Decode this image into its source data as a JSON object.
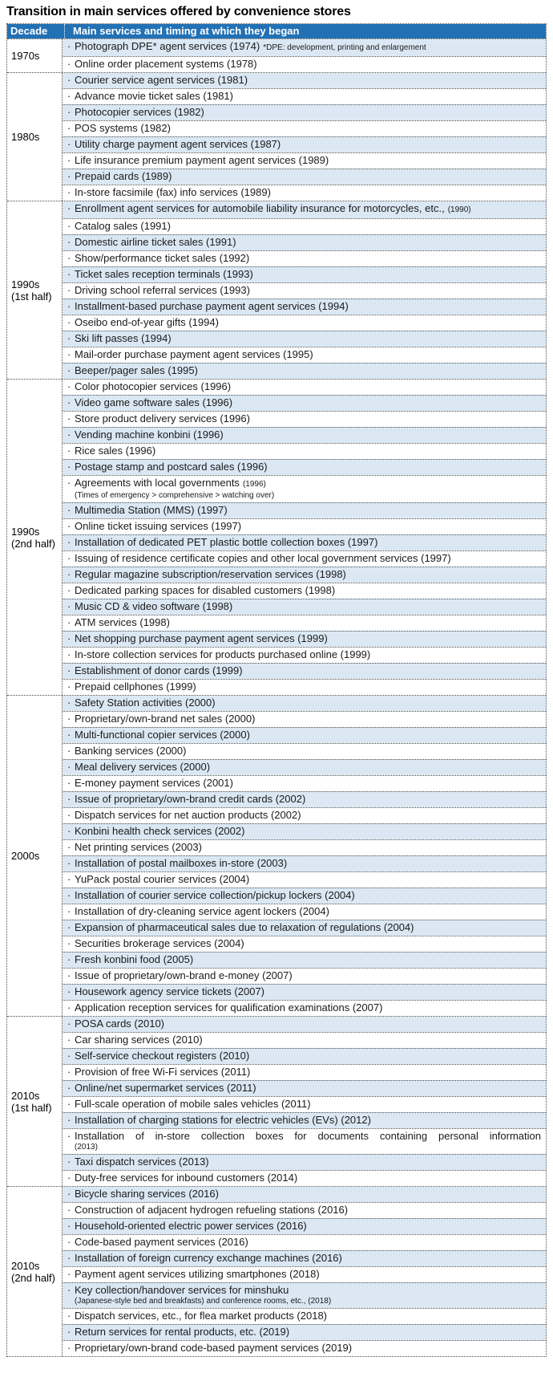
{
  "title": "Transition in main services offered by convenience stores",
  "bullet": "·",
  "colors": {
    "header_bg": "#2271B5",
    "header_text": "#FFFFFF",
    "row_alt_bg": "#DBE8F4",
    "row_bg": "#FFFFFF",
    "border": "#4D4D4D",
    "text": "#1A1A1A"
  },
  "header": {
    "decade": "Decade",
    "services": "Main services and timing at which they began"
  },
  "sections": [
    {
      "decade": [
        "1970s"
      ],
      "items": [
        {
          "text": "Photograph DPE* agent services (1974)",
          "note": "*DPE: development, printing and enlargement"
        },
        "Online order placement systems (1978)"
      ]
    },
    {
      "decade": [
        "1980s"
      ],
      "items": [
        "Courier service agent services (1981)",
        "Advance movie ticket sales (1981)",
        "Photocopier services (1982)",
        "POS systems (1982)",
        "Utility charge payment agent services (1987)",
        "Life insurance premium payment agent services (1989)",
        "Prepaid cards (1989)",
        "In-store facsimile (fax) info services (1989)"
      ]
    },
    {
      "decade": [
        "1990s",
        "(1st half)"
      ],
      "items": [
        {
          "text": "Enrollment agent services for automobile liability insurance for motorcycles, etc.,",
          "note": "(1990)"
        },
        "Catalog sales (1991)",
        "Domestic airline ticket sales (1991)",
        "Show/performance ticket sales (1992)",
        "Ticket sales reception terminals (1993)",
        "Driving school referral services (1993)",
        "Installment-based purchase payment agent services (1994)",
        "Oseibo end-of-year gifts (1994)",
        "Ski lift passes (1994)",
        "Mail-order purchase payment agent services (1995)",
        "Beeper/pager sales (1995)"
      ]
    },
    {
      "decade": [
        "1990s",
        "(2nd half)"
      ],
      "items": [
        "Color photocopier services (1996)",
        "Video game software sales (1996)",
        "Store product delivery services (1996)",
        "Vending machine konbini (1996)",
        "Rice sales (1996)",
        "Postage stamp and postcard sales (1996)",
        {
          "text": "Agreements with local governments",
          "note": "(1996)",
          "sub": "(Times of emergency > comprehensive > watching over)"
        },
        "Multimedia Station (MMS) (1997)",
        "Online ticket issuing services (1997)",
        "Installation of dedicated PET plastic bottle collection boxes (1997)",
        "Issuing of residence certificate copies and other local government services (1997)",
        "Regular magazine subscription/reservation services (1998)",
        "Dedicated parking spaces for disabled customers (1998)",
        "Music CD & video software (1998)",
        "ATM services (1998)",
        "Net shopping purchase payment agent services (1999)",
        "In-store collection services for products purchased online (1999)",
        "Establishment of donor cards (1999)",
        "Prepaid cellphones (1999)"
      ]
    },
    {
      "decade": [
        "2000s"
      ],
      "items": [
        "Safety Station activities (2000)",
        "Proprietary/own-brand net sales (2000)",
        "Multi-functional copier services (2000)",
        "Banking services (2000)",
        "Meal delivery services (2000)",
        "E-money payment services (2001)",
        "Issue of proprietary/own-brand credit cards (2002)",
        "Dispatch services for net auction products (2002)",
        "Konbini health check services (2002)",
        "Net printing services (2003)",
        "Installation of postal mailboxes in-store (2003)",
        "YuPack postal courier services (2004)",
        "Installation of courier service collection/pickup lockers (2004)",
        "Installation of dry-cleaning service agent lockers (2004)",
        "Expansion of pharmaceutical sales due to relaxation of regulations (2004)",
        "Securities brokerage services (2004)",
        "Fresh konbini food (2005)",
        "Issue of proprietary/own-brand e-money (2007)",
        "Housework agency service tickets (2007)",
        "Application reception services for qualification examinations (2007)"
      ]
    },
    {
      "decade": [
        "2010s",
        "(1st half)"
      ],
      "items": [
        "POSA cards (2010)",
        "Car sharing services (2010)",
        "Self-service checkout registers (2010)",
        "Provision of free Wi-Fi services (2011)",
        "Online/net supermarket services (2011)",
        "Full-scale operation of mobile sales vehicles (2011)",
        "Installation of charging stations for electric vehicles (EVs) (2012)",
        {
          "text": "Installation of in-store collection boxes for documents containing personal information",
          "sub": "(2013)",
          "justify": true
        },
        "Taxi dispatch services (2013)",
        "Duty-free services for inbound customers (2014)"
      ]
    },
    {
      "decade": [
        "2010s",
        "(2nd half)"
      ],
      "items": [
        "Bicycle sharing services (2016)",
        "Construction of adjacent hydrogen refueling stations (2016)",
        "Household-oriented electric power services (2016)",
        "Code-based payment services (2016)",
        "Installation of foreign currency exchange machines (2016)",
        "Payment agent services utilizing smartphones (2018)",
        {
          "text": "Key collection/handover services for minshuku",
          "sub": "(Japanese-style bed and breakfasts) and conference rooms, etc., (2018)"
        },
        "Dispatch services, etc., for flea market products (2018)",
        "Return services for rental products, etc. (2019)",
        "Proprietary/own-brand code-based payment services (2019)"
      ]
    }
  ]
}
